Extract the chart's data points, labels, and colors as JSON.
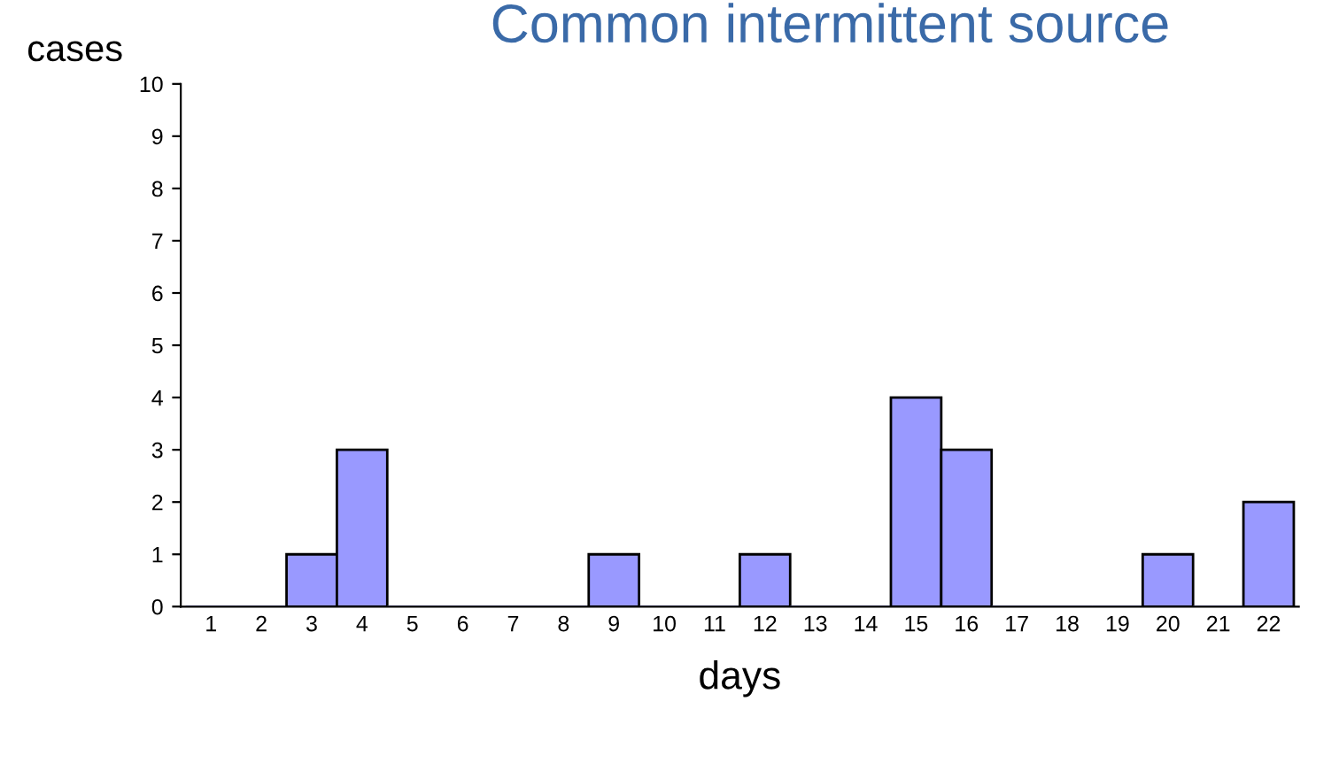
{
  "chart_data": {
    "type": "bar",
    "title": "Common intermittent source",
    "xlabel": "days",
    "ylabel": "cases",
    "categories": [
      "1",
      "2",
      "3",
      "4",
      "5",
      "6",
      "7",
      "8",
      "9",
      "10",
      "11",
      "12",
      "13",
      "14",
      "15",
      "16",
      "17",
      "18",
      "19",
      "20",
      "21",
      "22"
    ],
    "values": [
      0,
      0,
      1,
      3,
      0,
      0,
      0,
      0,
      1,
      0,
      0,
      1,
      0,
      0,
      4,
      3,
      0,
      0,
      0,
      1,
      0,
      2
    ],
    "color": "#9999ff",
    "ylim": [
      0,
      10
    ],
    "yticks": [
      0,
      1,
      2,
      3,
      4,
      5,
      6,
      7,
      8,
      9,
      10
    ],
    "grid": false,
    "legend": false
  }
}
